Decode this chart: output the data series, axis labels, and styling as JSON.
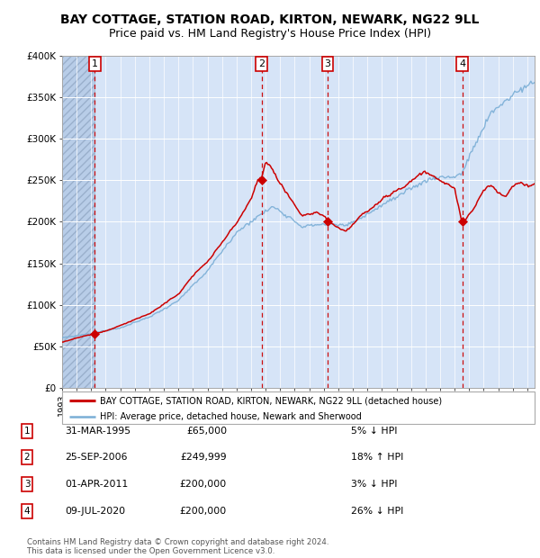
{
  "title": "BAY COTTAGE, STATION ROAD, KIRTON, NEWARK, NG22 9LL",
  "subtitle": "Price paid vs. HM Land Registry's House Price Index (HPI)",
  "legend_red": "BAY COTTAGE, STATION ROAD, KIRTON, NEWARK, NG22 9LL (detached house)",
  "legend_blue": "HPI: Average price, detached house, Newark and Sherwood",
  "footer1": "Contains HM Land Registry data © Crown copyright and database right 2024.",
  "footer2": "This data is licensed under the Open Government Licence v3.0.",
  "transactions": [
    {
      "num": 1,
      "date": "31-MAR-1995",
      "price": 65000,
      "pct": "5%",
      "dir": "↓",
      "year_x": 1995.25
    },
    {
      "num": 2,
      "date": "25-SEP-2006",
      "price": 249999,
      "pct": "18%",
      "dir": "↑",
      "year_x": 2006.73
    },
    {
      "num": 3,
      "date": "01-APR-2011",
      "price": 200000,
      "pct": "3%",
      "dir": "↓",
      "year_x": 2011.25
    },
    {
      "num": 4,
      "date": "09-JUL-2020",
      "price": 200000,
      "pct": "26%",
      "dir": "↓",
      "year_x": 2020.52
    }
  ],
  "ylim": [
    0,
    400000
  ],
  "yticks": [
    0,
    50000,
    100000,
    150000,
    200000,
    250000,
    300000,
    350000,
    400000
  ],
  "ytick_labels": [
    "£0",
    "£50K",
    "£100K",
    "£150K",
    "£200K",
    "£250K",
    "£300K",
    "£350K",
    "£400K"
  ],
  "xlim_start": 1993.0,
  "xlim_end": 2025.5,
  "background_color": "#d6e4f7",
  "hatch_color": "#b8cde8",
  "red_line_color": "#cc0000",
  "blue_line_color": "#7aaed6",
  "vline_color": "#cc0000",
  "marker_color": "#cc0000",
  "grid_color": "#ffffff",
  "title_fontsize": 10,
  "subtitle_fontsize": 9
}
